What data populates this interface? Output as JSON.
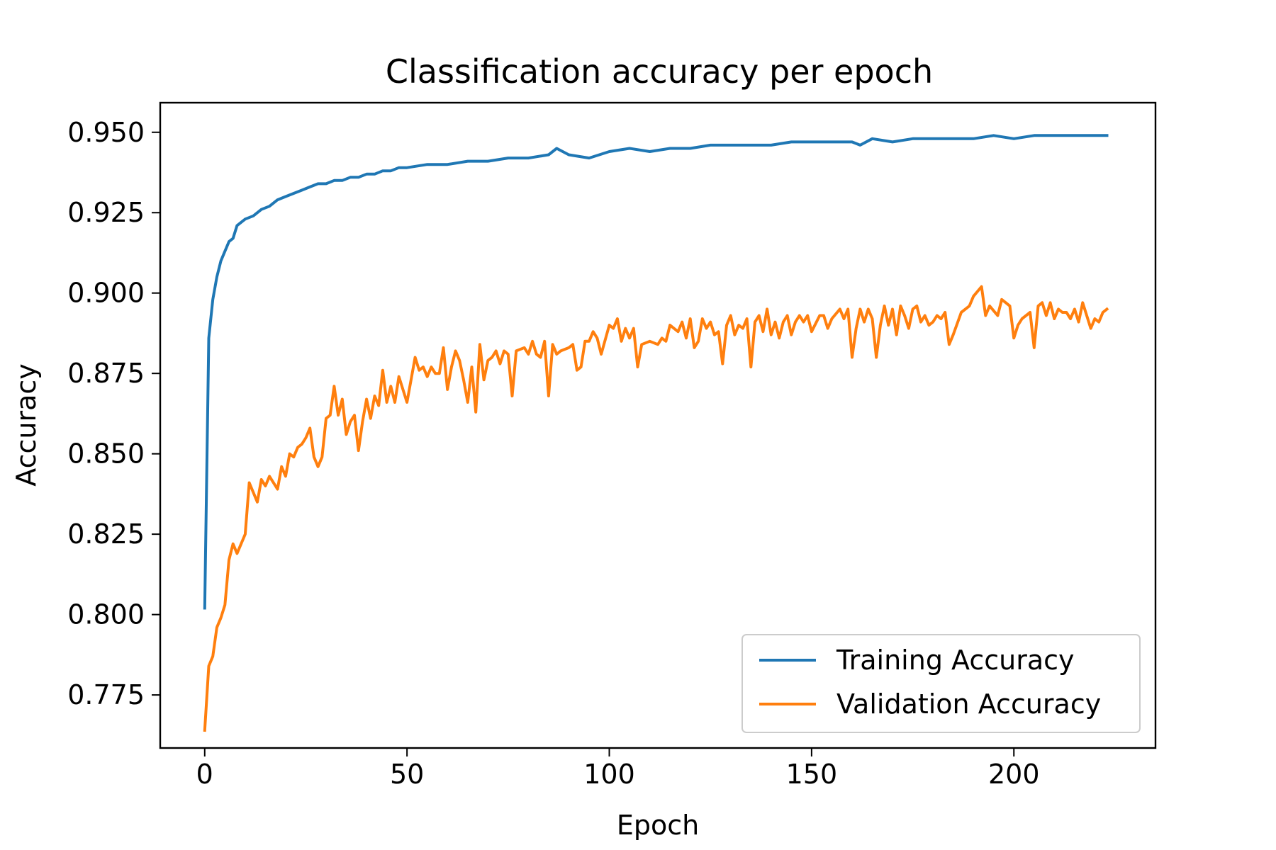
{
  "chart_data": {
    "type": "line",
    "title": "Classification accuracy per epoch",
    "xlabel": "Epoch",
    "ylabel": "Accuracy",
    "xlim": [
      -11,
      235
    ],
    "ylim": [
      0.7585,
      0.9592
    ],
    "xticks": [
      0,
      50,
      100,
      150,
      200
    ],
    "xtick_labels": [
      "0",
      "50",
      "100",
      "150",
      "200"
    ],
    "yticks": [
      0.775,
      0.8,
      0.825,
      0.85,
      0.875,
      0.9,
      0.925,
      0.95
    ],
    "ytick_labels": [
      "0.775",
      "0.800",
      "0.825",
      "0.850",
      "0.875",
      "0.900",
      "0.925",
      "0.950"
    ],
    "grid": false,
    "legend_position": "bottom-right",
    "series": [
      {
        "name": "Training Accuracy",
        "color": "#1f77b4",
        "points": [
          [
            0,
            0.802
          ],
          [
            1,
            0.886
          ],
          [
            2,
            0.898
          ],
          [
            3,
            0.905
          ],
          [
            4,
            0.91
          ],
          [
            5,
            0.913
          ],
          [
            6,
            0.916
          ],
          [
            7,
            0.917
          ],
          [
            8,
            0.921
          ],
          [
            10,
            0.923
          ],
          [
            12,
            0.924
          ],
          [
            14,
            0.926
          ],
          [
            16,
            0.927
          ],
          [
            18,
            0.929
          ],
          [
            20,
            0.93
          ],
          [
            22,
            0.931
          ],
          [
            24,
            0.932
          ],
          [
            26,
            0.933
          ],
          [
            28,
            0.934
          ],
          [
            30,
            0.934
          ],
          [
            32,
            0.935
          ],
          [
            34,
            0.935
          ],
          [
            36,
            0.936
          ],
          [
            38,
            0.936
          ],
          [
            40,
            0.937
          ],
          [
            42,
            0.937
          ],
          [
            44,
            0.938
          ],
          [
            46,
            0.938
          ],
          [
            48,
            0.939
          ],
          [
            50,
            0.939
          ],
          [
            55,
            0.94
          ],
          [
            60,
            0.94
          ],
          [
            65,
            0.941
          ],
          [
            70,
            0.941
          ],
          [
            75,
            0.942
          ],
          [
            80,
            0.942
          ],
          [
            85,
            0.943
          ],
          [
            87,
            0.945
          ],
          [
            90,
            0.943
          ],
          [
            95,
            0.942
          ],
          [
            100,
            0.944
          ],
          [
            105,
            0.945
          ],
          [
            110,
            0.944
          ],
          [
            115,
            0.945
          ],
          [
            120,
            0.945
          ],
          [
            125,
            0.946
          ],
          [
            130,
            0.946
          ],
          [
            135,
            0.946
          ],
          [
            140,
            0.946
          ],
          [
            145,
            0.947
          ],
          [
            150,
            0.947
          ],
          [
            155,
            0.947
          ],
          [
            160,
            0.947
          ],
          [
            162,
            0.946
          ],
          [
            165,
            0.948
          ],
          [
            170,
            0.947
          ],
          [
            175,
            0.948
          ],
          [
            180,
            0.948
          ],
          [
            185,
            0.948
          ],
          [
            190,
            0.948
          ],
          [
            195,
            0.949
          ],
          [
            200,
            0.948
          ],
          [
            205,
            0.949
          ],
          [
            210,
            0.949
          ],
          [
            215,
            0.949
          ],
          [
            220,
            0.949
          ],
          [
            223,
            0.949
          ]
        ]
      },
      {
        "name": "Validation Accuracy",
        "color": "#ff7f0e",
        "points": [
          [
            0,
            0.764
          ],
          [
            1,
            0.784
          ],
          [
            2,
            0.787
          ],
          [
            3,
            0.796
          ],
          [
            4,
            0.799
          ],
          [
            5,
            0.803
          ],
          [
            6,
            0.817
          ],
          [
            7,
            0.822
          ],
          [
            8,
            0.819
          ],
          [
            10,
            0.825
          ],
          [
            11,
            0.841
          ],
          [
            12,
            0.838
          ],
          [
            13,
            0.835
          ],
          [
            14,
            0.842
          ],
          [
            15,
            0.84
          ],
          [
            16,
            0.843
          ],
          [
            18,
            0.839
          ],
          [
            19,
            0.846
          ],
          [
            20,
            0.843
          ],
          [
            21,
            0.85
          ],
          [
            22,
            0.849
          ],
          [
            23,
            0.852
          ],
          [
            24,
            0.853
          ],
          [
            25,
            0.855
          ],
          [
            26,
            0.858
          ],
          [
            27,
            0.849
          ],
          [
            28,
            0.846
          ],
          [
            29,
            0.849
          ],
          [
            30,
            0.861
          ],
          [
            31,
            0.862
          ],
          [
            32,
            0.871
          ],
          [
            33,
            0.862
          ],
          [
            34,
            0.867
          ],
          [
            35,
            0.856
          ],
          [
            36,
            0.86
          ],
          [
            37,
            0.862
          ],
          [
            38,
            0.851
          ],
          [
            39,
            0.86
          ],
          [
            40,
            0.867
          ],
          [
            41,
            0.861
          ],
          [
            42,
            0.868
          ],
          [
            43,
            0.865
          ],
          [
            44,
            0.876
          ],
          [
            45,
            0.866
          ],
          [
            46,
            0.871
          ],
          [
            47,
            0.866
          ],
          [
            48,
            0.874
          ],
          [
            50,
            0.866
          ],
          [
            52,
            0.88
          ],
          [
            53,
            0.876
          ],
          [
            54,
            0.877
          ],
          [
            55,
            0.874
          ],
          [
            56,
            0.877
          ],
          [
            57,
            0.875
          ],
          [
            58,
            0.875
          ],
          [
            59,
            0.883
          ],
          [
            60,
            0.87
          ],
          [
            61,
            0.877
          ],
          [
            62,
            0.882
          ],
          [
            63,
            0.879
          ],
          [
            64,
            0.873
          ],
          [
            65,
            0.866
          ],
          [
            66,
            0.877
          ],
          [
            67,
            0.863
          ],
          [
            68,
            0.884
          ],
          [
            69,
            0.873
          ],
          [
            70,
            0.879
          ],
          [
            71,
            0.88
          ],
          [
            72,
            0.882
          ],
          [
            73,
            0.878
          ],
          [
            74,
            0.882
          ],
          [
            75,
            0.881
          ],
          [
            76,
            0.868
          ],
          [
            77,
            0.882
          ],
          [
            79,
            0.883
          ],
          [
            80,
            0.881
          ],
          [
            81,
            0.885
          ],
          [
            82,
            0.881
          ],
          [
            83,
            0.88
          ],
          [
            84,
            0.885
          ],
          [
            85,
            0.868
          ],
          [
            86,
            0.884
          ],
          [
            87,
            0.881
          ],
          [
            88,
            0.882
          ],
          [
            90,
            0.883
          ],
          [
            91,
            0.884
          ],
          [
            92,
            0.876
          ],
          [
            93,
            0.877
          ],
          [
            94,
            0.885
          ],
          [
            95,
            0.885
          ],
          [
            96,
            0.888
          ],
          [
            97,
            0.886
          ],
          [
            98,
            0.881
          ],
          [
            100,
            0.89
          ],
          [
            101,
            0.889
          ],
          [
            102,
            0.892
          ],
          [
            103,
            0.885
          ],
          [
            104,
            0.889
          ],
          [
            105,
            0.886
          ],
          [
            106,
            0.889
          ],
          [
            107,
            0.877
          ],
          [
            108,
            0.884
          ],
          [
            110,
            0.885
          ],
          [
            112,
            0.884
          ],
          [
            113,
            0.886
          ],
          [
            114,
            0.885
          ],
          [
            115,
            0.89
          ],
          [
            117,
            0.888
          ],
          [
            118,
            0.891
          ],
          [
            119,
            0.886
          ],
          [
            120,
            0.892
          ],
          [
            121,
            0.883
          ],
          [
            122,
            0.885
          ],
          [
            123,
            0.892
          ],
          [
            124,
            0.889
          ],
          [
            125,
            0.891
          ],
          [
            126,
            0.887
          ],
          [
            127,
            0.888
          ],
          [
            128,
            0.878
          ],
          [
            129,
            0.89
          ],
          [
            130,
            0.893
          ],
          [
            131,
            0.887
          ],
          [
            132,
            0.89
          ],
          [
            133,
            0.889
          ],
          [
            134,
            0.892
          ],
          [
            135,
            0.877
          ],
          [
            136,
            0.891
          ],
          [
            137,
            0.893
          ],
          [
            138,
            0.888
          ],
          [
            139,
            0.895
          ],
          [
            140,
            0.887
          ],
          [
            141,
            0.891
          ],
          [
            142,
            0.886
          ],
          [
            143,
            0.891
          ],
          [
            144,
            0.893
          ],
          [
            145,
            0.887
          ],
          [
            146,
            0.891
          ],
          [
            147,
            0.893
          ],
          [
            148,
            0.891
          ],
          [
            149,
            0.893
          ],
          [
            150,
            0.888
          ],
          [
            152,
            0.893
          ],
          [
            153,
            0.893
          ],
          [
            154,
            0.889
          ],
          [
            155,
            0.892
          ],
          [
            157,
            0.895
          ],
          [
            158,
            0.892
          ],
          [
            159,
            0.895
          ],
          [
            160,
            0.88
          ],
          [
            161,
            0.889
          ],
          [
            162,
            0.895
          ],
          [
            163,
            0.891
          ],
          [
            164,
            0.895
          ],
          [
            165,
            0.892
          ],
          [
            166,
            0.88
          ],
          [
            167,
            0.89
          ],
          [
            168,
            0.896
          ],
          [
            169,
            0.89
          ],
          [
            170,
            0.895
          ],
          [
            171,
            0.887
          ],
          [
            172,
            0.896
          ],
          [
            173,
            0.893
          ],
          [
            174,
            0.889
          ],
          [
            175,
            0.895
          ],
          [
            176,
            0.896
          ],
          [
            177,
            0.891
          ],
          [
            178,
            0.893
          ],
          [
            179,
            0.89
          ],
          [
            180,
            0.891
          ],
          [
            181,
            0.893
          ],
          [
            182,
            0.892
          ],
          [
            183,
            0.894
          ],
          [
            184,
            0.884
          ],
          [
            185,
            0.887
          ],
          [
            187,
            0.894
          ],
          [
            189,
            0.896
          ],
          [
            190,
            0.899
          ],
          [
            192,
            0.902
          ],
          [
            193,
            0.893
          ],
          [
            194,
            0.896
          ],
          [
            196,
            0.893
          ],
          [
            197,
            0.898
          ],
          [
            198,
            0.897
          ],
          [
            199,
            0.896
          ],
          [
            200,
            0.886
          ],
          [
            201,
            0.89
          ],
          [
            202,
            0.892
          ],
          [
            203,
            0.893
          ],
          [
            204,
            0.894
          ],
          [
            205,
            0.883
          ],
          [
            206,
            0.896
          ],
          [
            207,
            0.897
          ],
          [
            208,
            0.893
          ],
          [
            209,
            0.897
          ],
          [
            210,
            0.892
          ],
          [
            211,
            0.895
          ],
          [
            212,
            0.894
          ],
          [
            213,
            0.894
          ],
          [
            214,
            0.892
          ],
          [
            215,
            0.895
          ],
          [
            216,
            0.891
          ],
          [
            217,
            0.897
          ],
          [
            219,
            0.889
          ],
          [
            220,
            0.892
          ],
          [
            221,
            0.891
          ],
          [
            222,
            0.894
          ],
          [
            223,
            0.895
          ]
        ]
      }
    ]
  }
}
